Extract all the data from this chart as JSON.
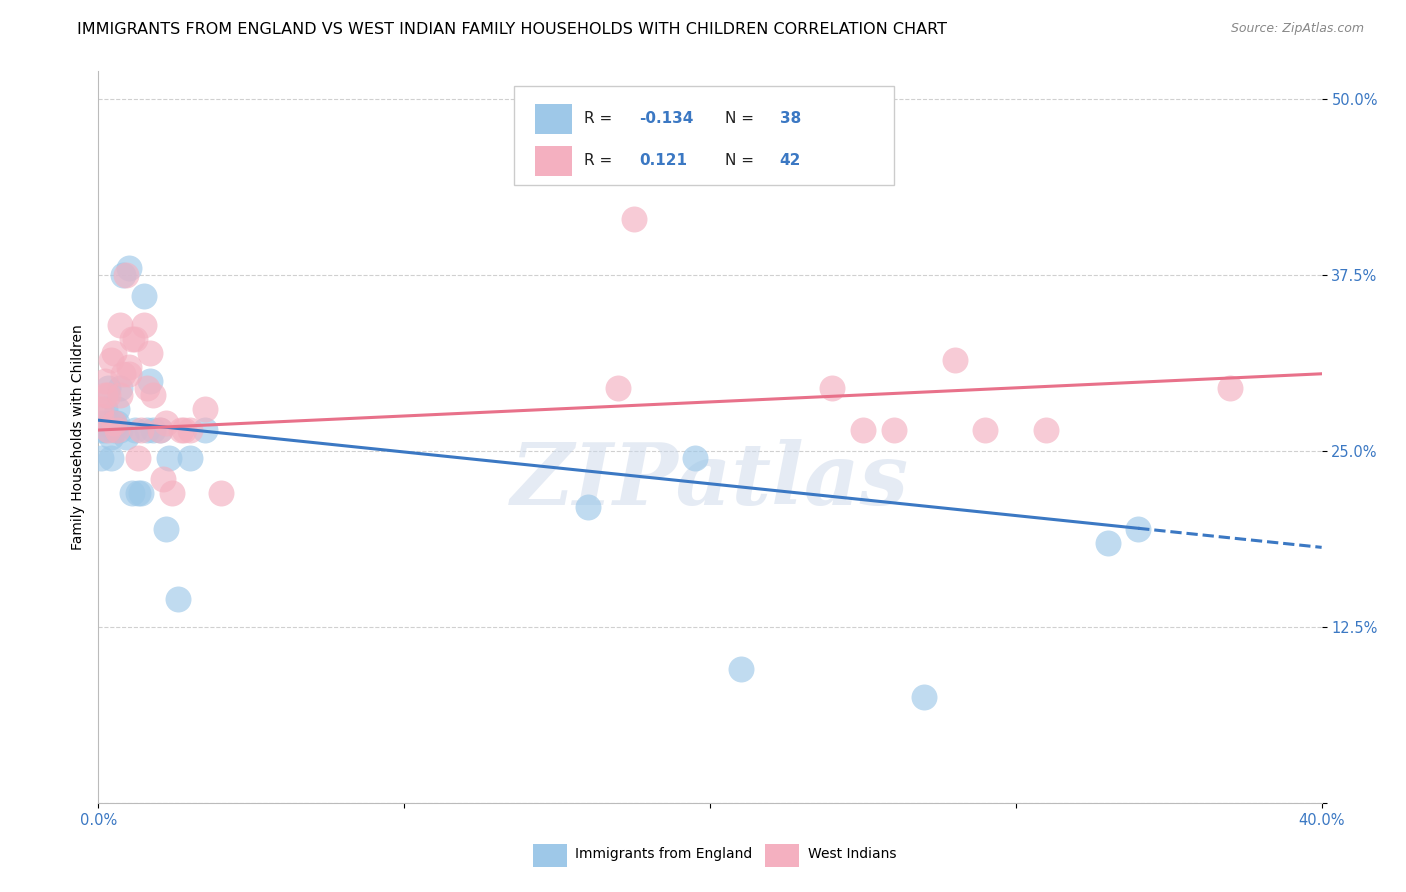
{
  "title": "IMMIGRANTS FROM ENGLAND VS WEST INDIAN FAMILY HOUSEHOLDS WITH CHILDREN CORRELATION CHART",
  "source": "Source: ZipAtlas.com",
  "ylabel": "Family Households with Children",
  "legend_label_1": "Immigrants from England",
  "legend_label_2": "West Indians",
  "xlim": [
    0.0,
    0.4
  ],
  "ylim": [
    0.0,
    0.52
  ],
  "blue_scatter_x": [
    0.0008,
    0.001,
    0.0015,
    0.002,
    0.002,
    0.003,
    0.003,
    0.004,
    0.004,
    0.005,
    0.005,
    0.006,
    0.006,
    0.007,
    0.007,
    0.008,
    0.009,
    0.01,
    0.011,
    0.012,
    0.013,
    0.014,
    0.015,
    0.016,
    0.017,
    0.018,
    0.02,
    0.022,
    0.023,
    0.026,
    0.03,
    0.035,
    0.16,
    0.195,
    0.21,
    0.27,
    0.33,
    0.34
  ],
  "blue_scatter_y": [
    0.265,
    0.245,
    0.27,
    0.265,
    0.28,
    0.27,
    0.295,
    0.245,
    0.26,
    0.27,
    0.265,
    0.27,
    0.28,
    0.295,
    0.265,
    0.375,
    0.26,
    0.38,
    0.22,
    0.265,
    0.22,
    0.22,
    0.36,
    0.265,
    0.3,
    0.265,
    0.265,
    0.195,
    0.245,
    0.145,
    0.245,
    0.265,
    0.21,
    0.245,
    0.095,
    0.075,
    0.185,
    0.195
  ],
  "pink_scatter_x": [
    0.0008,
    0.001,
    0.002,
    0.002,
    0.003,
    0.003,
    0.004,
    0.005,
    0.005,
    0.006,
    0.007,
    0.007,
    0.008,
    0.009,
    0.01,
    0.01,
    0.011,
    0.012,
    0.013,
    0.014,
    0.015,
    0.016,
    0.017,
    0.018,
    0.02,
    0.021,
    0.022,
    0.024,
    0.027,
    0.028,
    0.03,
    0.035,
    0.04,
    0.17,
    0.175,
    0.24,
    0.25,
    0.26,
    0.28,
    0.29,
    0.31,
    0.37
  ],
  "pink_scatter_y": [
    0.275,
    0.28,
    0.29,
    0.3,
    0.265,
    0.29,
    0.315,
    0.27,
    0.32,
    0.265,
    0.34,
    0.29,
    0.305,
    0.375,
    0.31,
    0.305,
    0.33,
    0.33,
    0.245,
    0.265,
    0.34,
    0.295,
    0.32,
    0.29,
    0.265,
    0.23,
    0.27,
    0.22,
    0.265,
    0.265,
    0.265,
    0.28,
    0.22,
    0.295,
    0.415,
    0.295,
    0.265,
    0.265,
    0.315,
    0.265,
    0.265,
    0.295
  ],
  "bg_color": "#ffffff",
  "grid_color": "#d0d0d0",
  "blue_color": "#9ec8e8",
  "blue_line_color": "#3b78c3",
  "pink_color": "#f4b0c0",
  "pink_line_color": "#e8718a",
  "watermark": "ZIPatlas",
  "title_fontsize": 11.5,
  "axis_label_fontsize": 10,
  "tick_fontsize": 10.5
}
